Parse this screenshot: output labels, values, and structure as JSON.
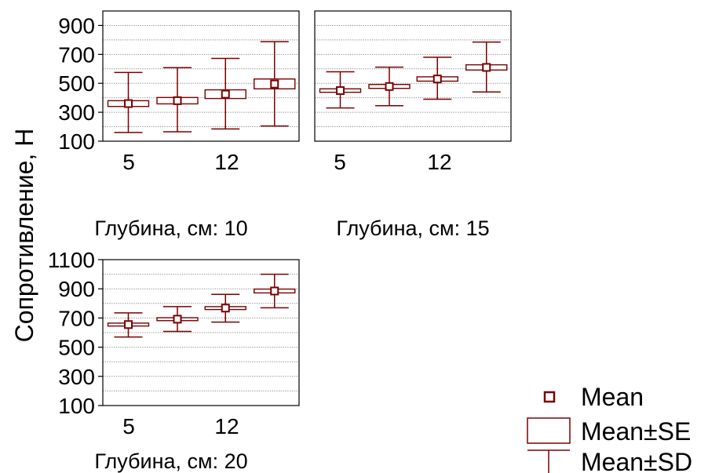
{
  "ylabel": "Сопротивление, Н",
  "legend": [
    {
      "key": "mean",
      "label": "Mean"
    },
    {
      "key": "se",
      "label": "Mean±SE"
    },
    {
      "key": "sd",
      "label": "Mean±SD"
    }
  ],
  "colors": {
    "mark": "#7a0000",
    "grid": "#888888",
    "frame": "#000000"
  },
  "chart_data": [
    {
      "type": "box",
      "title": "Глубина, см: 10",
      "xlabel": "Глубина, см: 10",
      "ylabel": "Сопротивление, Н",
      "x_ticks": [
        {
          "label": "5",
          "position": 1
        },
        {
          "label": "12",
          "position": 3
        }
      ],
      "ylim": [
        100,
        1000
      ],
      "y_ticks": [
        100,
        300,
        500,
        700,
        900
      ],
      "grid": true,
      "points": [
        {
          "x": 1,
          "mean": 360,
          "se": [
            340,
            380
          ],
          "sd": [
            160,
            575
          ]
        },
        {
          "x": 2,
          "mean": 380,
          "se": [
            358,
            402
          ],
          "sd": [
            165,
            608
          ]
        },
        {
          "x": 3,
          "mean": 425,
          "se": [
            395,
            455
          ],
          "sd": [
            185,
            672
          ]
        },
        {
          "x": 4,
          "mean": 495,
          "se": [
            462,
            530
          ],
          "sd": [
            205,
            788
          ]
        }
      ]
    },
    {
      "type": "box",
      "title": "Глубина, см: 15",
      "xlabel": "Глубина, см: 15",
      "ylabel": "",
      "x_ticks": [
        {
          "label": "5",
          "position": 1
        },
        {
          "label": "12",
          "position": 3
        }
      ],
      "ylim": [
        100,
        1000
      ],
      "y_ticks": [
        100,
        300,
        500,
        700,
        900
      ],
      "grid": true,
      "points": [
        {
          "x": 1,
          "mean": 450,
          "se": [
            438,
            462
          ],
          "sd": [
            330,
            580
          ]
        },
        {
          "x": 2,
          "mean": 478,
          "se": [
            465,
            492
          ],
          "sd": [
            345,
            612
          ]
        },
        {
          "x": 3,
          "mean": 530,
          "se": [
            515,
            545
          ],
          "sd": [
            390,
            680
          ]
        },
        {
          "x": 4,
          "mean": 610,
          "se": [
            592,
            628
          ],
          "sd": [
            440,
            785
          ]
        }
      ]
    },
    {
      "type": "box",
      "title": "Глубина, см: 20",
      "xlabel": "Глубина, см: 20",
      "ylabel": "Сопротивление, Н",
      "x_ticks": [
        {
          "label": "5",
          "position": 1
        },
        {
          "label": "12",
          "position": 3
        }
      ],
      "ylim": [
        100,
        1100
      ],
      "y_ticks": [
        100,
        300,
        500,
        700,
        900,
        1100
      ],
      "grid": true,
      "points": [
        {
          "x": 1,
          "mean": 655,
          "se": [
            645,
            665
          ],
          "sd": [
            570,
            735
          ]
        },
        {
          "x": 2,
          "mean": 692,
          "se": [
            682,
            702
          ],
          "sd": [
            608,
            778
          ]
        },
        {
          "x": 3,
          "mean": 768,
          "se": [
            758,
            778
          ],
          "sd": [
            672,
            862
          ]
        },
        {
          "x": 4,
          "mean": 885,
          "se": [
            872,
            898
          ],
          "sd": [
            770,
            1000
          ]
        }
      ]
    }
  ]
}
